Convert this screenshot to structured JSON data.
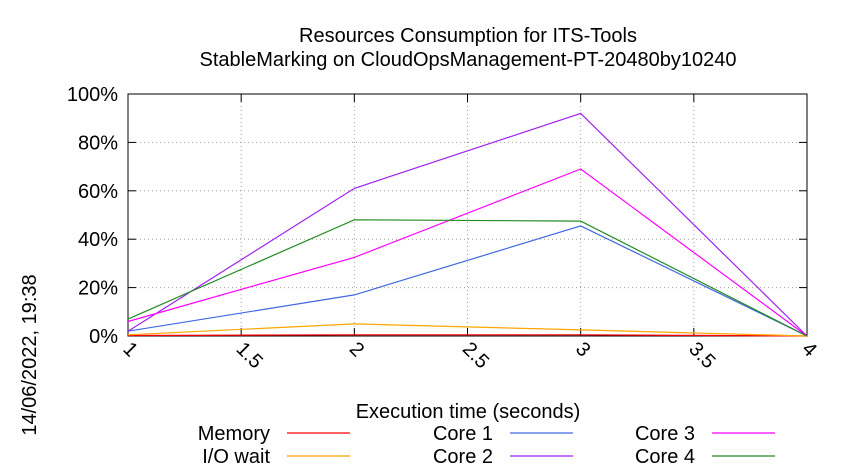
{
  "chart_data": {
    "type": "line",
    "title": "Resources Consumption for ITS-Tools",
    "subtitle": "StableMarking on CloudOpsManagement-PT-20480by10240",
    "xlabel": "Execution time (seconds)",
    "ylabel": "",
    "side_label": "14/06/2022, 19:38",
    "xlim": [
      1,
      4
    ],
    "ylim": [
      0,
      100
    ],
    "x_ticks": [
      1,
      1.5,
      2,
      2.5,
      3,
      3.5,
      4
    ],
    "x_tick_labels": [
      "1",
      "1.5",
      "2",
      "2.5",
      "3",
      "3.5",
      "4"
    ],
    "y_ticks": [
      0,
      20,
      40,
      60,
      80,
      100
    ],
    "y_tick_labels": [
      "0%",
      "20%",
      "40%",
      "60%",
      "80%",
      "100%"
    ],
    "grid": true,
    "legend_position": "bottom",
    "series": [
      {
        "name": "Memory",
        "color": "#ff0000",
        "x": [
          1,
          2,
          3,
          4
        ],
        "values": [
          0.2,
          0.5,
          0.5,
          0
        ]
      },
      {
        "name": "I/O wait",
        "color": "#ffa500",
        "x": [
          1,
          2,
          3,
          4
        ],
        "values": [
          0.5,
          5,
          2.5,
          0
        ]
      },
      {
        "name": "Core 1",
        "color": "#4169e1",
        "x": [
          1,
          2,
          3,
          4
        ],
        "values": [
          2,
          17,
          45.5,
          0
        ]
      },
      {
        "name": "Core 2",
        "color": "#a020f0",
        "x": [
          1,
          2,
          3,
          4
        ],
        "values": [
          2,
          61,
          92,
          0
        ]
      },
      {
        "name": "Core 3",
        "color": "#ff00ff",
        "x": [
          1,
          2,
          3,
          4
        ],
        "values": [
          6,
          32.5,
          69,
          0
        ]
      },
      {
        "name": "Core 4",
        "color": "#228b22",
        "x": [
          1,
          2,
          3,
          4
        ],
        "values": [
          7,
          48,
          47.5,
          0
        ]
      }
    ]
  }
}
